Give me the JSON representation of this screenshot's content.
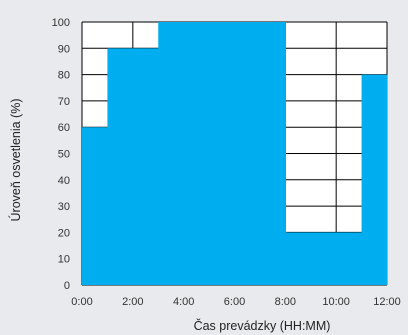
{
  "chart_data": {
    "type": "area",
    "step": true,
    "title": "",
    "xlabel": "Čas prevádzky (HH:MM)",
    "ylabel": "Úroveň osvetlenia (%)",
    "xlim": [
      0,
      12
    ],
    "ylim": [
      0,
      100
    ],
    "x_ticks": [
      "0:00",
      "2:00",
      "4:00",
      "6:00",
      "8:00",
      "10:00",
      "12:00"
    ],
    "y_ticks": [
      0,
      10,
      20,
      30,
      40,
      50,
      60,
      70,
      80,
      90,
      100
    ],
    "grid": true,
    "series": [
      {
        "x": [
          "0:00",
          "1:00",
          "2:00",
          "3:00",
          "4:00",
          "5:00",
          "6:00",
          "7:00",
          "8:00",
          "9:00",
          "10:00",
          "11:00"
        ],
        "values": [
          60,
          90,
          90,
          100,
          100,
          100,
          100,
          100,
          20,
          20,
          20,
          80
        ]
      }
    ],
    "colors": {
      "fill": "#00aeef",
      "background": "#ffffff",
      "grid": "#000000",
      "page": "#e9eaed"
    }
  }
}
